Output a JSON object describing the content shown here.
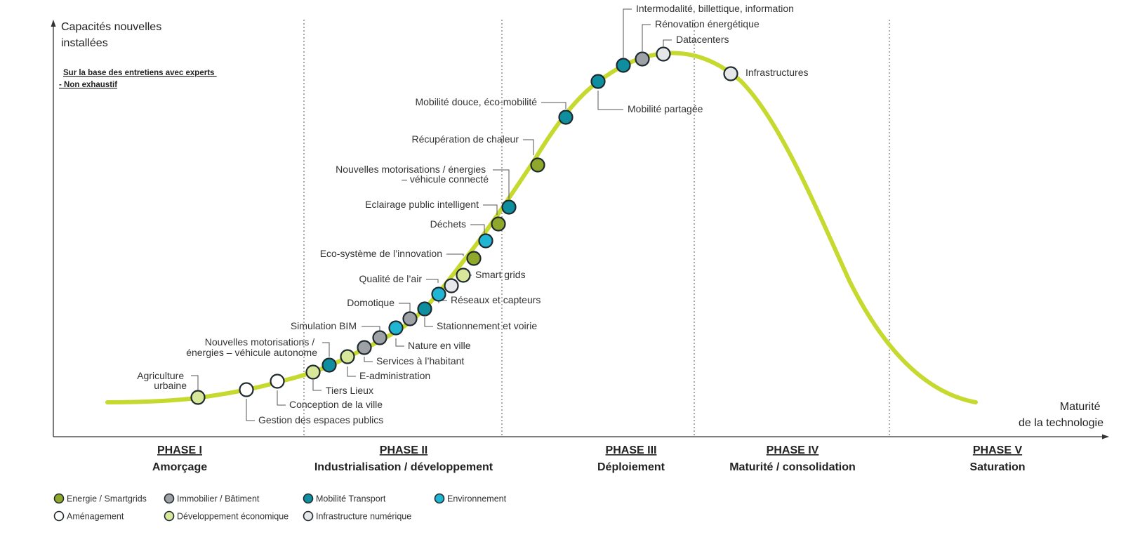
{
  "y_axis_title": [
    "Capacités nouvelles",
    "installées"
  ],
  "x_axis_title": [
    "Maturité",
    "de la technologie"
  ],
  "note": [
    "Sur la base des entretiens avec experts",
    "- Non exhaustif"
  ],
  "phases": [
    {
      "name": "PHASE I",
      "subtitle": "Amorçage"
    },
    {
      "name": "PHASE II",
      "subtitle": "Industrialisation / développement"
    },
    {
      "name": "PHASE III",
      "subtitle": "Déploiement"
    },
    {
      "name": "PHASE IV",
      "subtitle": "Maturité / consolidation"
    },
    {
      "name": "PHASE V",
      "subtitle": "Saturation"
    }
  ],
  "colors": {
    "curve": "#c5d92e",
    "energie": "#8fa82b",
    "immobilier": "#9ea2a7",
    "mobilite": "#0f8ea0",
    "environnement": "#20b6d3",
    "amenagement": "#ffffff",
    "developpement": "#d8e79a",
    "numerique": "#e6e7e9"
  },
  "legend": [
    {
      "category": "energie",
      "label": "Energie / Smartgrids"
    },
    {
      "category": "immobilier",
      "label": "Immobilier / Bâtiment"
    },
    {
      "category": "mobilite",
      "label": "Mobilité Transport"
    },
    {
      "category": "environnement",
      "label": "Environnement"
    },
    {
      "category": "amenagement",
      "label": "Aménagement"
    },
    {
      "category": "developpement",
      "label": "Développement économique"
    },
    {
      "category": "numerique",
      "label": "Infrastructure numérique"
    }
  ],
  "points": [
    {
      "label": [
        "Agriculture",
        "urbaine"
      ],
      "category": "developpement"
    },
    {
      "label": [
        "Gestion des espaces publics"
      ],
      "category": "amenagement"
    },
    {
      "label": [
        "Conception de la ville"
      ],
      "category": "amenagement"
    },
    {
      "label": [
        "Tiers Lieux"
      ],
      "category": "developpement"
    },
    {
      "label": [
        "Nouvelles motorisations /",
        "énergies – véhicule autonome"
      ],
      "category": "mobilite"
    },
    {
      "label": [
        "E-administration"
      ],
      "category": "developpement"
    },
    {
      "label": [
        "Services à l’habitant"
      ],
      "category": "immobilier"
    },
    {
      "label": [
        "Simulation BIM"
      ],
      "category": "immobilier"
    },
    {
      "label": [
        "Nature en ville"
      ],
      "category": "environnement"
    },
    {
      "label": [
        "Domotique"
      ],
      "category": "immobilier"
    },
    {
      "label": [
        "Stationnement et voirie"
      ],
      "category": "mobilite"
    },
    {
      "label": [
        "Réseaux et capteurs"
      ],
      "category": "environnement"
    },
    {
      "label": [
        "Qualité de l’air"
      ],
      "category": "numerique"
    },
    {
      "label": [
        "Smart grids"
      ],
      "category": "developpement"
    },
    {
      "label": [
        "Eco-système de l’innovation"
      ],
      "category": "energie"
    },
    {
      "label": [
        "Déchets"
      ],
      "category": "environnement"
    },
    {
      "label": [
        "Eclairage public intelligent"
      ],
      "category": "energie"
    },
    {
      "label": [
        "Nouvelles motorisations / énergies",
        "– véhicule connecté"
      ],
      "category": "mobilite"
    },
    {
      "label": [
        "Récupération de chaleur"
      ],
      "category": "energie"
    },
    {
      "label": [
        "Mobilité douce, éco-mobilité"
      ],
      "category": "mobilite"
    },
    {
      "label": [
        "Mobilité partagée"
      ],
      "category": "mobilite"
    },
    {
      "label": [
        "Intermodalité, billettique, information"
      ],
      "category": "mobilite"
    },
    {
      "label": [
        "Rénovation énergétique"
      ],
      "category": "immobilier"
    },
    {
      "label": [
        "Datacenters"
      ],
      "category": "numerique"
    },
    {
      "label": [
        "Infrastructures"
      ],
      "category": "numerique"
    }
  ]
}
